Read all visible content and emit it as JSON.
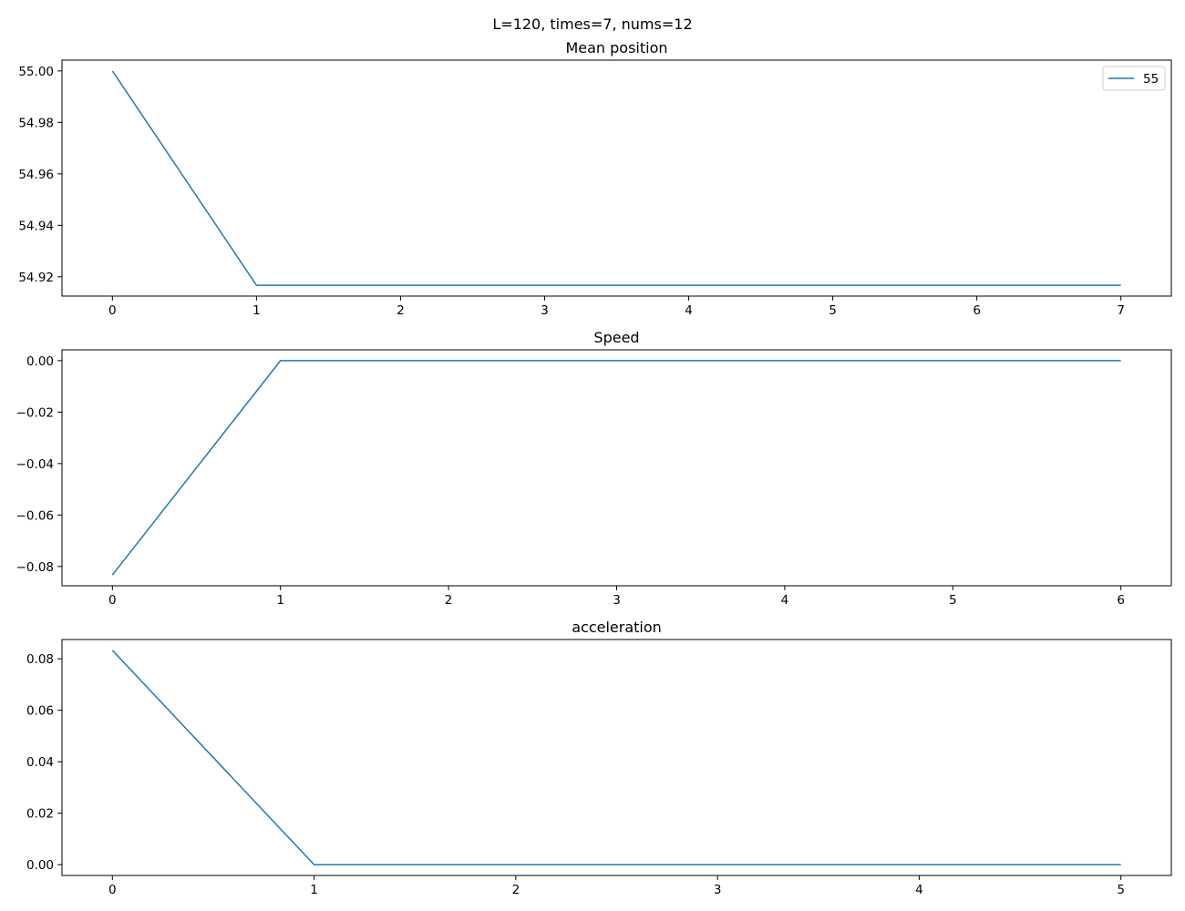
{
  "figure": {
    "suptitle": "L=120, times=7, nums=12",
    "line_color": "#1f77b4"
  },
  "chart_data": [
    {
      "type": "line",
      "title": "Mean position",
      "xlabel": "",
      "ylabel": "",
      "x": [
        0,
        1,
        2,
        3,
        4,
        5,
        6,
        7
      ],
      "series": [
        {
          "name": "55",
          "values": [
            55.0,
            54.9167,
            54.9167,
            54.9167,
            54.9167,
            54.9167,
            54.9167,
            54.9167
          ]
        }
      ],
      "xlim": [
        -0.35,
        7.35
      ],
      "ylim": [
        54.9125,
        55.0042
      ],
      "xticks": [
        0,
        1,
        2,
        3,
        4,
        5,
        6,
        7
      ],
      "xtick_labels": [
        "0",
        "1",
        "2",
        "3",
        "4",
        "5",
        "6",
        "7"
      ],
      "yticks": [
        54.92,
        54.94,
        54.96,
        54.98,
        55.0
      ],
      "ytick_labels": [
        "54.92",
        "54.94",
        "54.96",
        "54.98",
        "55.00"
      ],
      "legend": "top-right",
      "grid": false
    },
    {
      "type": "line",
      "title": "Speed",
      "xlabel": "",
      "ylabel": "",
      "x": [
        0,
        1,
        2,
        3,
        4,
        5,
        6
      ],
      "series": [
        {
          "values": [
            -0.0833,
            0.0,
            0.0,
            0.0,
            0.0,
            0.0,
            0.0
          ]
        }
      ],
      "xlim": [
        -0.3,
        6.3
      ],
      "ylim": [
        -0.0875,
        0.0042
      ],
      "xticks": [
        0,
        1,
        2,
        3,
        4,
        5,
        6
      ],
      "xtick_labels": [
        "0",
        "1",
        "2",
        "3",
        "4",
        "5",
        "6"
      ],
      "yticks": [
        -0.08,
        -0.06,
        -0.04,
        -0.02,
        0.0
      ],
      "ytick_labels": [
        "−0.08",
        "−0.06",
        "−0.04",
        "−0.02",
        "0.00"
      ],
      "grid": false
    },
    {
      "type": "line",
      "title": "acceleration",
      "xlabel": "",
      "ylabel": "",
      "x": [
        0,
        1,
        2,
        3,
        4,
        5
      ],
      "series": [
        {
          "values": [
            0.0833,
            0.0,
            0.0,
            0.0,
            0.0,
            0.0
          ]
        }
      ],
      "xlim": [
        -0.25,
        5.25
      ],
      "ylim": [
        -0.0042,
        0.0875
      ],
      "xticks": [
        0,
        1,
        2,
        3,
        4,
        5
      ],
      "xtick_labels": [
        "0",
        "1",
        "2",
        "3",
        "4",
        "5"
      ],
      "yticks": [
        0.0,
        0.02,
        0.04,
        0.06,
        0.08
      ],
      "ytick_labels": [
        "0.00",
        "0.02",
        "0.04",
        "0.06",
        "0.08"
      ],
      "grid": false
    }
  ]
}
